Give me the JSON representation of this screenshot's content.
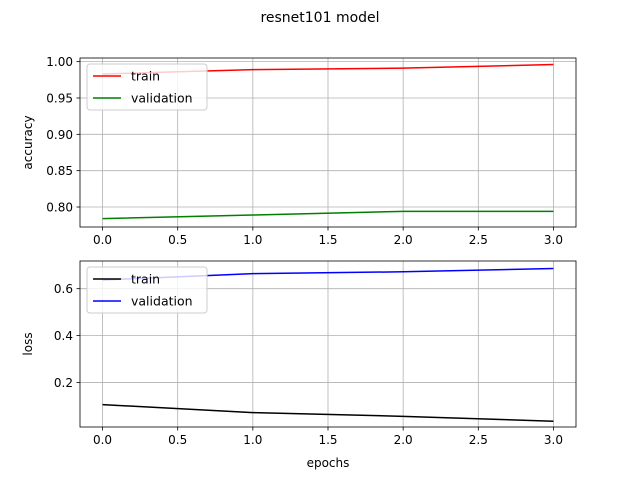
{
  "figure": {
    "title": "resnet101 model"
  },
  "chart_data": [
    {
      "type": "line",
      "xlabel": "",
      "ylabel": "accuracy",
      "xlim": [
        -0.15,
        3.15
      ],
      "ylim": [
        0.7725,
        1.005
      ],
      "xticks": [
        0.0,
        0.5,
        1.0,
        1.5,
        2.0,
        2.5,
        3.0
      ],
      "xtick_labels": [
        "0.0",
        "0.5",
        "1.0",
        "1.5",
        "2.0",
        "2.5",
        "3.0"
      ],
      "yticks": [
        0.8,
        0.85,
        0.9,
        0.95,
        1.0
      ],
      "ytick_labels": [
        "0.80",
        "0.85",
        "0.90",
        "0.95",
        "1.00"
      ],
      "grid": true,
      "legend": "upper-left",
      "series": [
        {
          "name": "train",
          "color": "#ff0000",
          "x": [
            0,
            1,
            2,
            3
          ],
          "y": [
            0.983,
            0.989,
            0.991,
            0.996
          ]
        },
        {
          "name": "validation",
          "color": "#008000",
          "x": [
            0,
            1,
            2,
            3
          ],
          "y": [
            0.784,
            0.789,
            0.794,
            0.794
          ]
        }
      ]
    },
    {
      "type": "line",
      "xlabel": "epochs",
      "ylabel": "loss",
      "xlim": [
        -0.15,
        3.15
      ],
      "ylim": [
        0.0105,
        0.718
      ],
      "xticks": [
        0.0,
        0.5,
        1.0,
        1.5,
        2.0,
        2.5,
        3.0
      ],
      "xtick_labels": [
        "0.0",
        "0.5",
        "1.0",
        "1.5",
        "2.0",
        "2.5",
        "3.0"
      ],
      "yticks": [
        0.2,
        0.4,
        0.6
      ],
      "ytick_labels": [
        "0.2",
        "0.4",
        "0.6"
      ],
      "grid": true,
      "legend": "upper-left",
      "series": [
        {
          "name": "train",
          "color": "#000000",
          "x": [
            0,
            1,
            2,
            3
          ],
          "y": [
            0.106,
            0.072,
            0.056,
            0.035
          ]
        },
        {
          "name": "validation",
          "color": "#0000ff",
          "x": [
            0,
            1,
            2,
            3
          ],
          "y": [
            0.637,
            0.664,
            0.672,
            0.686
          ]
        }
      ]
    }
  ]
}
